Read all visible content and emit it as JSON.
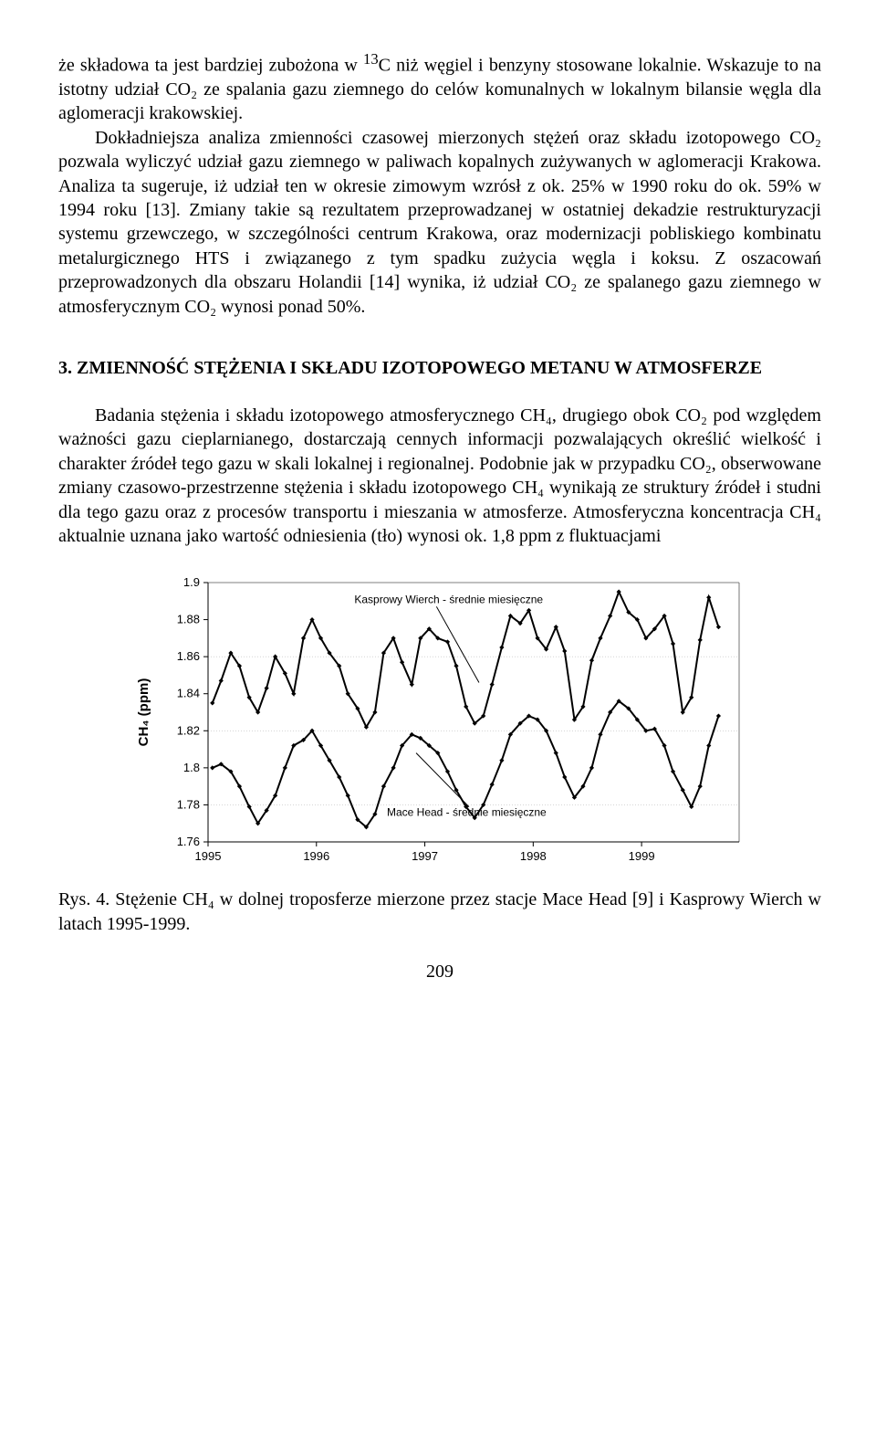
{
  "paragraphs": {
    "p1a": "że składowa ta jest bardziej zubożona w ",
    "p1b": "13",
    "p1c": "C niż węgiel i benzyny stosowane lokalnie. Wskazuje to na istotny udział CO₂ ze spalania gazu ziemnego do celów komunalnych w lokalnym bilansie węgla dla aglomeracji krakowskiej.",
    "p2": "Dokładniejsza analiza zmienności czasowej mierzonych stężeń oraz składu izotopowego CO₂ pozwala wyliczyć udział gazu ziemnego w paliwach kopalnych zużywanych w aglomeracji Krakowa. Analiza ta sugeruje, iż udział ten w okresie zimowym wzrósł z ok. 25% w 1990 roku do ok. 59% w 1994 roku [13]. Zmiany takie są rezultatem przeprowadzanej w ostatniej dekadzie restrukturyzacji systemu grzewczego, w szczególności centrum Krakowa, oraz modernizacji pobliskiego kombinatu metalurgicznego HTS i związanego z tym spadku zużycia węgla i koksu. Z oszacowań przeprowadzonych dla obszaru Holandii [14] wynika, iż udział CO₂ ze spalanego gazu ziemnego w atmosferycznym CO₂ wynosi ponad 50%.",
    "section_title": "3. ZMIENNOŚĆ STĘŻENIA I SKŁADU IZOTOPOWEGO METANU W ATMOSFERZE",
    "p3": "Badania stężenia i składu izotopowego atmosferycznego CH₄, drugiego obok CO₂ pod względem ważności gazu cieplarnianego, dostarczają cennych informacji pozwalających określić wielkość i charakter źródeł tego gazu w skali lokalnej i regionalnej. Podobnie jak w przypadku CO₂, obserwowane zmiany czasowo-przestrzenne stężenia i składu izotopowego CH₄ wynikają ze struktury źródeł i studni dla tego gazu oraz z procesów transportu i mieszania w atmosferze. Atmosferyczna koncentracja CH₄ aktualnie uznana jako wartość odniesienia (tło) wynosi ok. 1,8 ppm z fluktuacjami"
  },
  "chart": {
    "type": "line",
    "ylabel": "CH₄ (ppm)",
    "ylabel_fontsize": 15,
    "axis_fontsize": 13,
    "annotation_fontsize": 12,
    "xlim": [
      1995,
      1999.9
    ],
    "ylim": [
      1.76,
      1.9
    ],
    "xtick_positions": [
      1995,
      1996,
      1997,
      1998,
      1999
    ],
    "xtick_labels": [
      "1995",
      "1996",
      "1997",
      "1998",
      "1999"
    ],
    "ytick_positions": [
      1.76,
      1.78,
      1.8,
      1.82,
      1.84,
      1.86,
      1.88,
      1.9
    ],
    "ytick_labels": [
      "1.76",
      "1.78",
      "1.8",
      "1.82",
      "1.84",
      "1.86",
      "1.88",
      "1.9"
    ],
    "grid_y": [
      1.78,
      1.82,
      1.86
    ],
    "background_color": "#ffffff",
    "grid_color": "#bdbdbd",
    "line_color": "#000000",
    "marker_color": "#000000",
    "line_width": 2,
    "marker_radius": 2.6,
    "series": {
      "kasprowy": {
        "label": "Kasprowy Wierch - średnie miesięczne",
        "x": [
          1995.04,
          1995.12,
          1995.21,
          1995.29,
          1995.38,
          1995.46,
          1995.54,
          1995.62,
          1995.71,
          1995.79,
          1995.88,
          1995.96,
          1996.04,
          1996.12,
          1996.21,
          1996.29,
          1996.38,
          1996.46,
          1996.54,
          1996.62,
          1996.71,
          1996.79,
          1996.88,
          1996.96,
          1997.04,
          1997.12,
          1997.21,
          1997.29,
          1997.38,
          1997.46,
          1997.54,
          1997.62,
          1997.71,
          1997.79,
          1997.88,
          1997.96,
          1998.04,
          1998.12,
          1998.21,
          1998.29,
          1998.38,
          1998.46,
          1998.54,
          1998.62,
          1998.71,
          1998.79,
          1998.88,
          1998.96,
          1999.04,
          1999.12,
          1999.21,
          1999.29,
          1999.38,
          1999.46,
          1999.54,
          1999.62,
          1999.71
        ],
        "y": [
          1.835,
          1.847,
          1.862,
          1.855,
          1.838,
          1.83,
          1.843,
          1.86,
          1.851,
          1.84,
          1.87,
          1.88,
          1.87,
          1.862,
          1.855,
          1.84,
          1.832,
          1.822,
          1.83,
          1.862,
          1.87,
          1.857,
          1.845,
          1.87,
          1.875,
          1.87,
          1.868,
          1.855,
          1.833,
          1.824,
          1.828,
          1.845,
          1.865,
          1.882,
          1.878,
          1.885,
          1.87,
          1.864,
          1.876,
          1.863,
          1.826,
          1.833,
          1.858,
          1.87,
          1.882,
          1.895,
          1.884,
          1.88,
          1.87,
          1.875,
          1.882,
          1.867,
          1.83,
          1.838,
          1.869,
          1.892,
          1.876
        ],
        "annotation_pos": {
          "x": 1996.35,
          "y": 1.889
        },
        "pointer_to": {
          "x": 1997.5,
          "y": 1.846
        }
      },
      "macehead": {
        "label": "Mace Head - średnie miesięczne",
        "x": [
          1995.04,
          1995.12,
          1995.21,
          1995.29,
          1995.38,
          1995.46,
          1995.54,
          1995.62,
          1995.71,
          1995.79,
          1995.88,
          1995.96,
          1996.04,
          1996.12,
          1996.21,
          1996.29,
          1996.38,
          1996.46,
          1996.54,
          1996.62,
          1996.71,
          1996.79,
          1996.88,
          1996.96,
          1997.04,
          1997.12,
          1997.21,
          1997.29,
          1997.38,
          1997.46,
          1997.54,
          1997.62,
          1997.71,
          1997.79,
          1997.88,
          1997.96,
          1998.04,
          1998.12,
          1998.21,
          1998.29,
          1998.38,
          1998.46,
          1998.54,
          1998.62,
          1998.71,
          1998.79,
          1998.88,
          1998.96,
          1999.04,
          1999.12,
          1999.21,
          1999.29,
          1999.38,
          1999.46,
          1999.54,
          1999.62,
          1999.71
        ],
        "y": [
          1.8,
          1.802,
          1.798,
          1.79,
          1.779,
          1.77,
          1.777,
          1.785,
          1.8,
          1.812,
          1.815,
          1.82,
          1.812,
          1.804,
          1.795,
          1.785,
          1.772,
          1.768,
          1.775,
          1.79,
          1.8,
          1.812,
          1.818,
          1.816,
          1.812,
          1.808,
          1.798,
          1.788,
          1.779,
          1.773,
          1.78,
          1.791,
          1.804,
          1.818,
          1.824,
          1.828,
          1.826,
          1.82,
          1.808,
          1.795,
          1.784,
          1.79,
          1.8,
          1.818,
          1.83,
          1.836,
          1.832,
          1.826,
          1.82,
          1.821,
          1.812,
          1.798,
          1.788,
          1.779,
          1.79,
          1.812,
          1.828
        ],
        "annotation_pos": {
          "x": 1996.65,
          "y": 1.774
        },
        "pointer_to": {
          "x": 1996.92,
          "y": 1.808
        }
      }
    }
  },
  "caption": "Rys. 4. Stężenie CH₄ w dolnej troposferze mierzone przez stacje Mace Head [9] i Kasprowy Wierch w latach 1995-1999.",
  "page_number": "209"
}
